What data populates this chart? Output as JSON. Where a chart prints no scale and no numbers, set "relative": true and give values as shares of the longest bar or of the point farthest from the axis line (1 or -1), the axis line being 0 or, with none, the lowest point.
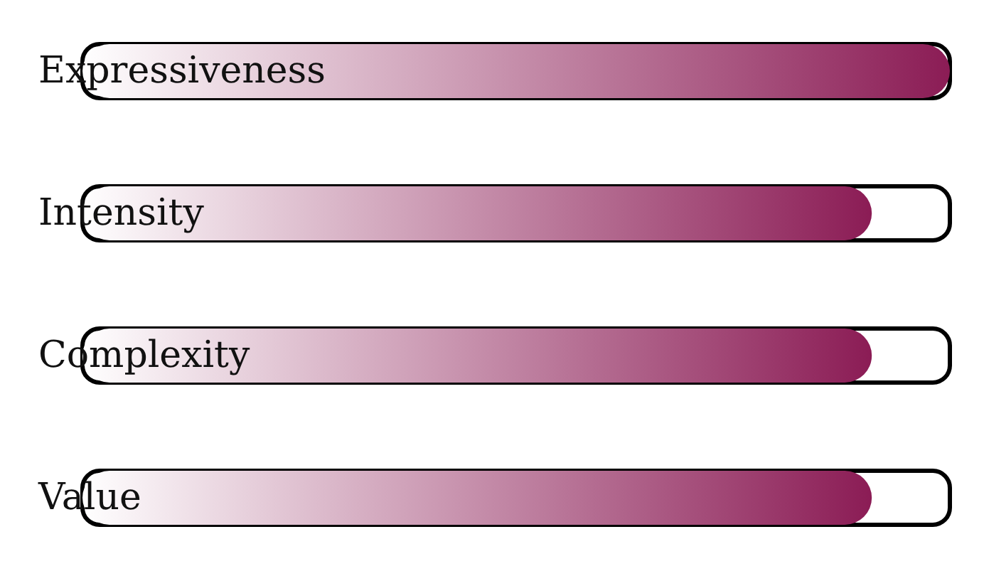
{
  "chart_data": {
    "type": "bar",
    "orientation": "horizontal",
    "relative": true,
    "categories": [
      "Expressiveness",
      "Intensity",
      "Complexity",
      "Value"
    ],
    "values": [
      1,
      0.91,
      0.91,
      0.91
    ],
    "color": "#8b1c55"
  }
}
